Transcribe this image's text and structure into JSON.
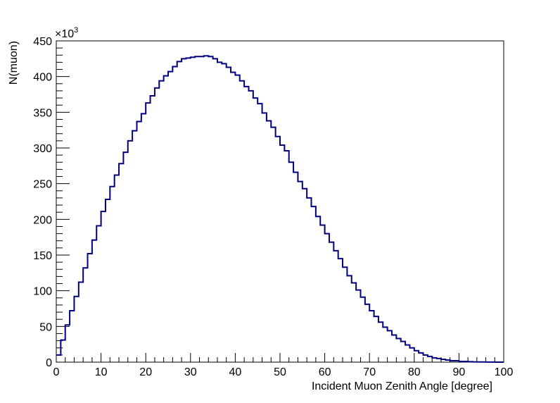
{
  "chart_data": {
    "type": "bar",
    "style": "step-histogram",
    "xlabel": "Incident Muon Zenith Angle [degree]",
    "ylabel": "N(muon)",
    "y_exponent_label": "×10",
    "y_exponent_power": "3",
    "xlim": [
      0,
      100
    ],
    "ylim": [
      0,
      450
    ],
    "y_units": "thousands",
    "grid": false,
    "legend": "none",
    "line_color": "#00007f",
    "bin_width": 1,
    "x_ticks": [
      0,
      10,
      20,
      30,
      40,
      50,
      60,
      70,
      80,
      90,
      100
    ],
    "y_ticks": [
      0,
      50,
      100,
      150,
      200,
      250,
      300,
      350,
      400,
      450
    ],
    "x_tick_labels": [
      "0",
      "10",
      "20",
      "30",
      "40",
      "50",
      "60",
      "70",
      "80",
      "90",
      "100"
    ],
    "y_tick_labels": [
      "0",
      "50",
      "100",
      "150",
      "200",
      "250",
      "300",
      "350",
      "400",
      "450"
    ],
    "x": [
      0,
      1,
      2,
      3,
      4,
      5,
      6,
      7,
      8,
      9,
      10,
      11,
      12,
      13,
      14,
      15,
      16,
      17,
      18,
      19,
      20,
      21,
      22,
      23,
      24,
      25,
      26,
      27,
      28,
      29,
      30,
      31,
      32,
      33,
      34,
      35,
      36,
      37,
      38,
      39,
      40,
      41,
      42,
      43,
      44,
      45,
      46,
      47,
      48,
      49,
      50,
      51,
      52,
      53,
      54,
      55,
      56,
      57,
      58,
      59,
      60,
      61,
      62,
      63,
      64,
      65,
      66,
      67,
      68,
      69,
      70,
      71,
      72,
      73,
      74,
      75,
      76,
      77,
      78,
      79,
      80,
      81,
      82,
      83,
      84,
      85,
      86,
      87,
      88,
      89,
      90,
      91,
      92,
      93,
      94,
      95,
      96,
      97,
      98,
      99
    ],
    "values": [
      10,
      31,
      52,
      72,
      92,
      112,
      132,
      152,
      171,
      191,
      211,
      228,
      246,
      262,
      278,
      294,
      310,
      324,
      337,
      348,
      363,
      373,
      384,
      394,
      401,
      407,
      414,
      421,
      425,
      426,
      427,
      428,
      428,
      429,
      428,
      425,
      420,
      418,
      413,
      406,
      402,
      394,
      386,
      380,
      370,
      362,
      349,
      338,
      329,
      316,
      304,
      296,
      280,
      266,
      253,
      243,
      230,
      218,
      204,
      192,
      180,
      168,
      156,
      145,
      133,
      121,
      111,
      101,
      91,
      81,
      72,
      64,
      56,
      49,
      44,
      38,
      33,
      29,
      24,
      20,
      16,
      13,
      10,
      8,
      6,
      5,
      4,
      3,
      2,
      2,
      1,
      1,
      0.6,
      0.4,
      0.3,
      0.2,
      0.1,
      0.1,
      0.05,
      0.02
    ]
  }
}
